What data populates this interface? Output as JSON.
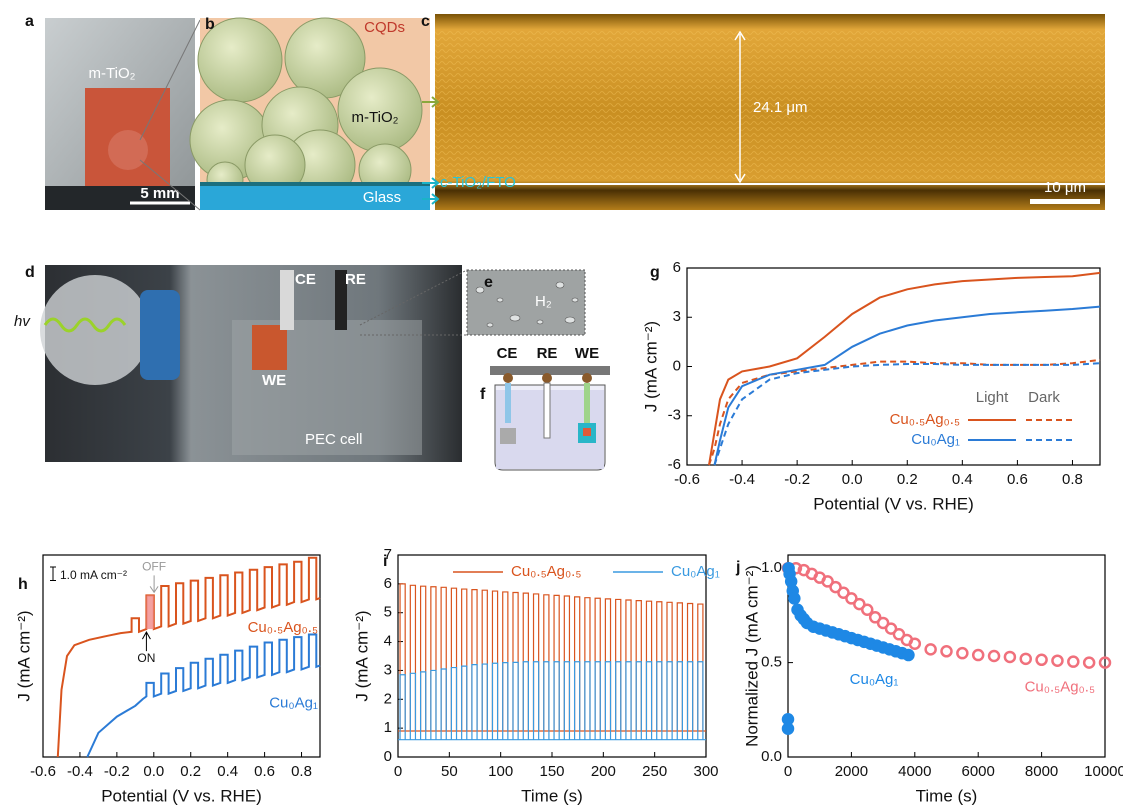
{
  "panels": {
    "a": {
      "label": "a",
      "film": "m-TiO₂",
      "scale_bar": "5 mm"
    },
    "b": {
      "label": "b",
      "sensitizer": "CQDs",
      "film": "m-TiO₂",
      "substrate": "Glass",
      "layer": "c-TiO₂/FTO"
    },
    "c": {
      "label": "c",
      "thickness": "24.1 μm",
      "scale_bar": "10 μm"
    },
    "d": {
      "label": "d",
      "light": "hv",
      "electrodes": [
        "CE",
        "RE"
      ],
      "working": "WE",
      "cell": "PEC cell"
    },
    "e": {
      "label": "e",
      "gas": "H₂"
    },
    "f": {
      "label": "f",
      "electrodes": [
        "CE",
        "RE",
        "WE"
      ]
    }
  },
  "chart_data": [
    {
      "panel": "g",
      "type": "line",
      "x": [
        -0.52,
        -0.5,
        -0.48,
        -0.45,
        -0.4,
        -0.3,
        -0.2,
        -0.1,
        0,
        0.1,
        0.2,
        0.3,
        0.4,
        0.5,
        0.6,
        0.7,
        0.8,
        0.9
      ],
      "xlim": [
        -0.6,
        0.9
      ],
      "xticks": [
        -0.6,
        -0.4,
        -0.2,
        {
          "value": 0,
          "label": "0.0"
        },
        0.2,
        0.4,
        0.6,
        0.8
      ],
      "ylim": [
        -6,
        6
      ],
      "yticks": [
        -6,
        -3,
        0,
        3,
        6
      ],
      "xlabel": "Potential (V vs. RHE)",
      "ylabel": "J (mA cm⁻²)",
      "legend_columns": [
        "Light",
        "Dark"
      ],
      "series": [
        {
          "name": "Cu₀.₅Ag₀.₅",
          "color": "#d9541e",
          "light": [
            -6,
            -4,
            -2,
            -0.8,
            -0.3,
            0,
            0.5,
            1.8,
            3.2,
            4.2,
            4.7,
            5,
            5.2,
            5.3,
            5.4,
            5.45,
            5.5,
            5.7
          ],
          "dark": [
            -6,
            -5,
            -3.5,
            -2,
            -1,
            -0.5,
            -0.3,
            -0.1,
            0.1,
            0.3,
            0.3,
            0.2,
            0.2,
            0.1,
            0.1,
            0.1,
            0.2,
            0.4
          ]
        },
        {
          "name": "Cu₀Ag₁",
          "color": "#2b7bd6",
          "light": [
            null,
            -6,
            -4.5,
            -2.5,
            -1.2,
            -0.5,
            -0.2,
            0.1,
            1.2,
            2,
            2.5,
            2.8,
            3,
            3.2,
            3.3,
            3.4,
            3.5,
            3.65
          ],
          "dark": [
            null,
            -6,
            -5,
            -3.5,
            -2,
            -0.8,
            -0.4,
            -0.2,
            0,
            0.1,
            0.15,
            0.15,
            0.1,
            0.1,
            0.1,
            0.1,
            0.1,
            0.2
          ]
        }
      ]
    },
    {
      "panel": "h",
      "type": "line",
      "xlim": [
        -0.6,
        0.9
      ],
      "xticks": [
        -0.6,
        -0.4,
        -0.2,
        {
          "value": 0,
          "label": "0.0"
        },
        0.2,
        0.4,
        0.6,
        0.8
      ],
      "ylim": [
        0,
        15
      ],
      "xlabel": "Potential (V vs. RHE)",
      "ylabel": "J (mA cm⁻²)",
      "scale_bar": {
        "value": 1.0,
        "label": "1.0 mA cm⁻²"
      },
      "annotations": {
        "off": "OFF",
        "on": "ON"
      },
      "series": [
        {
          "name": "Cu₀.₅Ag₀.₅",
          "color": "#d9541e",
          "x": [
            -0.52,
            -0.5,
            -0.47,
            -0.43,
            -0.35,
            -0.25,
            -0.18,
            -0.12,
            -0.12,
            -0.08,
            -0.08,
            -0.04,
            -0.04,
            0,
            0,
            0.04,
            0.04,
            0.08,
            0.08,
            0.12,
            0.12,
            0.16,
            0.16,
            0.2,
            0.2,
            0.24,
            0.24,
            0.28,
            0.28,
            0.32,
            0.32,
            0.36,
            0.36,
            0.4,
            0.4,
            0.44,
            0.44,
            0.48,
            0.48,
            0.52,
            0.52,
            0.56,
            0.56,
            0.6,
            0.6,
            0.64,
            0.64,
            0.68,
            0.68,
            0.72,
            0.72,
            0.76,
            0.76,
            0.8,
            0.8,
            0.84,
            0.84,
            0.88,
            0.88,
            0.9
          ],
          "values": [
            0,
            5,
            7.5,
            8.3,
            8.7,
            9,
            9.2,
            9.3,
            10.3,
            10.3,
            9.3,
            9.5,
            12,
            12,
            9.5,
            9.7,
            12.7,
            12.7,
            9.7,
            9.9,
            12.9,
            12.9,
            9.9,
            10.1,
            13.1,
            13.1,
            10.1,
            10.3,
            13.3,
            13.3,
            10.3,
            10.5,
            13.5,
            13.5,
            10.5,
            10.7,
            13.7,
            13.7,
            10.7,
            10.9,
            13.9,
            13.9,
            10.9,
            11.1,
            14.1,
            14.1,
            11.1,
            11.3,
            14.3,
            14.3,
            11.3,
            11.5,
            14.5,
            14.5,
            11.5,
            11.7,
            14.8,
            14.8,
            11.7,
            11.8
          ]
        },
        {
          "name": "Cu₀Ag₁",
          "color": "#2b7bd6",
          "x": [
            -0.36,
            -0.3,
            -0.2,
            -0.1,
            -0.06,
            -0.04,
            -0.04,
            0,
            0,
            0.04,
            0.04,
            0.08,
            0.08,
            0.12,
            0.12,
            0.16,
            0.16,
            0.2,
            0.2,
            0.24,
            0.24,
            0.28,
            0.28,
            0.32,
            0.32,
            0.36,
            0.36,
            0.4,
            0.4,
            0.44,
            0.44,
            0.48,
            0.48,
            0.52,
            0.52,
            0.56,
            0.56,
            0.6,
            0.6,
            0.64,
            0.64,
            0.68,
            0.68,
            0.72,
            0.72,
            0.76,
            0.76,
            0.8,
            0.8,
            0.84,
            0.84,
            0.88,
            0.88,
            0.9
          ],
          "values": [
            0,
            1.8,
            3,
            3.8,
            4.3,
            4.5,
            5.5,
            5.5,
            4.5,
            4.7,
            6.2,
            6.2,
            4.7,
            4.9,
            6.6,
            6.6,
            4.9,
            5.1,
            7,
            7,
            5.1,
            5.3,
            7.3,
            7.3,
            5.3,
            5.5,
            7.6,
            7.6,
            5.5,
            5.7,
            7.9,
            7.9,
            5.7,
            5.9,
            8.2,
            8.2,
            5.9,
            6.1,
            8.5,
            8.5,
            6.1,
            6.3,
            8.7,
            8.7,
            6.3,
            6.5,
            8.9,
            8.9,
            6.5,
            6.7,
            9.1,
            9.1,
            6.7,
            6.8
          ]
        }
      ]
    },
    {
      "panel": "i",
      "type": "pulse",
      "x": [
        2,
        12,
        22,
        32,
        42,
        52,
        62,
        72,
        82,
        92,
        102,
        112,
        122,
        132,
        142,
        152,
        162,
        172,
        182,
        192,
        202,
        212,
        222,
        232,
        242,
        252,
        262,
        272,
        282,
        292
      ],
      "x_off": [
        7,
        17,
        27,
        37,
        47,
        57,
        67,
        77,
        87,
        97,
        107,
        117,
        127,
        137,
        147,
        157,
        167,
        177,
        187,
        197,
        207,
        217,
        227,
        237,
        247,
        257,
        267,
        277,
        287,
        297
      ],
      "xlim": [
        0,
        300
      ],
      "xticks": [
        0,
        50,
        100,
        150,
        200,
        250,
        300
      ],
      "ylim": [
        0,
        7
      ],
      "yticks": [
        0,
        1,
        2,
        3,
        4,
        5,
        6,
        7
      ],
      "xlabel": "Time (s)",
      "ylabel": "J (mA cm⁻²)",
      "series": [
        {
          "name": "Cu₀.₅Ag₀.₅",
          "color": "#d9541e",
          "dark": 0.9,
          "light": [
            6,
            5.95,
            5.92,
            5.9,
            5.88,
            5.85,
            5.82,
            5.8,
            5.78,
            5.75,
            5.72,
            5.7,
            5.68,
            5.65,
            5.62,
            5.6,
            5.58,
            5.55,
            5.52,
            5.5,
            5.48,
            5.46,
            5.44,
            5.42,
            5.4,
            5.38,
            5.36,
            5.34,
            5.32,
            5.3
          ]
        },
        {
          "name": "Cu₀Ag₁",
          "color": "#3a9ae0",
          "dark": 0.6,
          "light": [
            2.85,
            2.9,
            2.95,
            3,
            3.05,
            3.1,
            3.15,
            3.2,
            3.22,
            3.25,
            3.27,
            3.28,
            3.3,
            3.3,
            3.3,
            3.3,
            3.3,
            3.3,
            3.3,
            3.3,
            3.3,
            3.3,
            3.3,
            3.3,
            3.3,
            3.3,
            3.3,
            3.3,
            3.3,
            3.3
          ]
        }
      ]
    },
    {
      "panel": "j",
      "type": "scatter",
      "xlim": [
        0,
        10000
      ],
      "xticks": [
        0,
        2000,
        4000,
        6000,
        8000,
        10000
      ],
      "ylim": [
        0,
        1.07
      ],
      "yticks": [
        {
          "value": 0,
          "label": "0.0"
        },
        0.5,
        {
          "value": 1,
          "label": "1.0"
        }
      ],
      "xlabel": "Time (s)",
      "ylabel": "Normalized J (mA cm⁻²)",
      "series": [
        {
          "name": "Cu₀.₅Ag₀.₅",
          "color": "#f0707c",
          "x": [
            0,
            250,
            500,
            750,
            1000,
            1250,
            1500,
            1750,
            2000,
            2250,
            2500,
            2750,
            3000,
            3250,
            3500,
            3750,
            4000,
            4500,
            5000,
            5500,
            6000,
            6500,
            7000,
            7500,
            8000,
            8500,
            9000,
            9500,
            10000
          ],
          "values": [
            1,
            1,
            0.99,
            0.97,
            0.95,
            0.93,
            0.9,
            0.87,
            0.84,
            0.81,
            0.78,
            0.74,
            0.71,
            0.68,
            0.65,
            0.62,
            0.6,
            0.57,
            0.56,
            0.55,
            0.54,
            0.535,
            0.53,
            0.52,
            0.515,
            0.51,
            0.505,
            0.5,
            0.5
          ]
        },
        {
          "name": "Cu₀Ag₁",
          "color": "#1e88e5",
          "x": [
            0,
            0,
            20,
            50,
            100,
            150,
            200,
            300,
            400,
            500,
            600,
            800,
            1000,
            1200,
            1400,
            1600,
            1800,
            2000,
            2200,
            2400,
            2600,
            2800,
            3000,
            3200,
            3400,
            3600,
            3800
          ],
          "values": [
            0.15,
            0.2,
            1,
            0.97,
            0.93,
            0.88,
            0.84,
            0.78,
            0.75,
            0.73,
            0.71,
            0.69,
            0.68,
            0.67,
            0.66,
            0.65,
            0.64,
            0.63,
            0.62,
            0.61,
            0.6,
            0.59,
            0.58,
            0.57,
            0.56,
            0.55,
            0.54
          ]
        }
      ]
    }
  ]
}
